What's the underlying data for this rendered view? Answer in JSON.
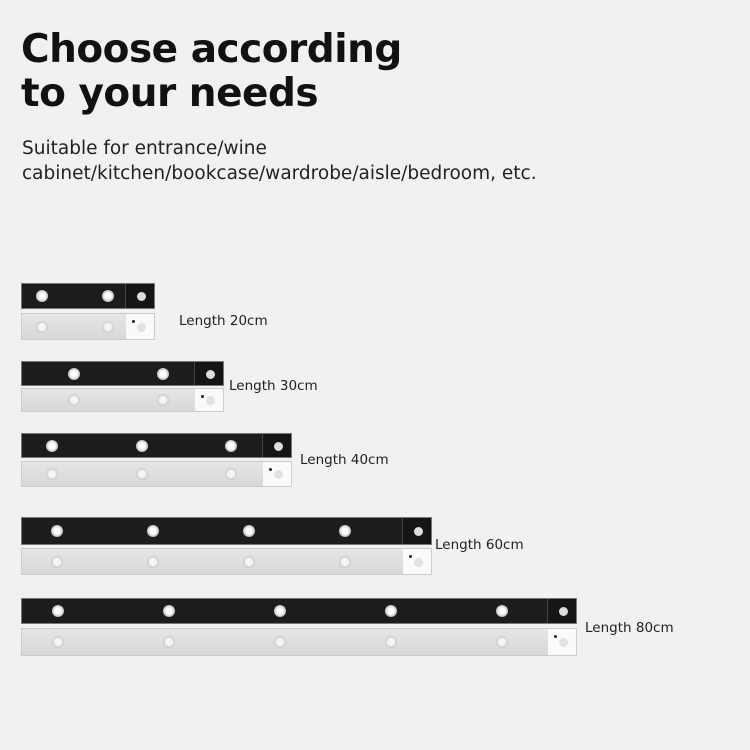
{
  "title": [
    "Choose according",
    "to your needs"
  ],
  "subtitle": [
    "Suitable for entrance/wine",
    "cabinet/kitchen/bookcase/wardrobe/aisle/bedroom, etc."
  ],
  "products": [
    {
      "label": "Length 20cm",
      "leds": 2
    },
    {
      "label": "Length 30cm",
      "leds": 2
    },
    {
      "label": "Length 40cm",
      "leds": 3
    },
    {
      "label": "Length 60cm",
      "leds": 4
    },
    {
      "label": "Length 80cm",
      "leds": 5
    }
  ],
  "colors": {
    "background": "#f1f1f1",
    "black_bar": "#1c1c1c",
    "white_bar": "#dedede"
  }
}
